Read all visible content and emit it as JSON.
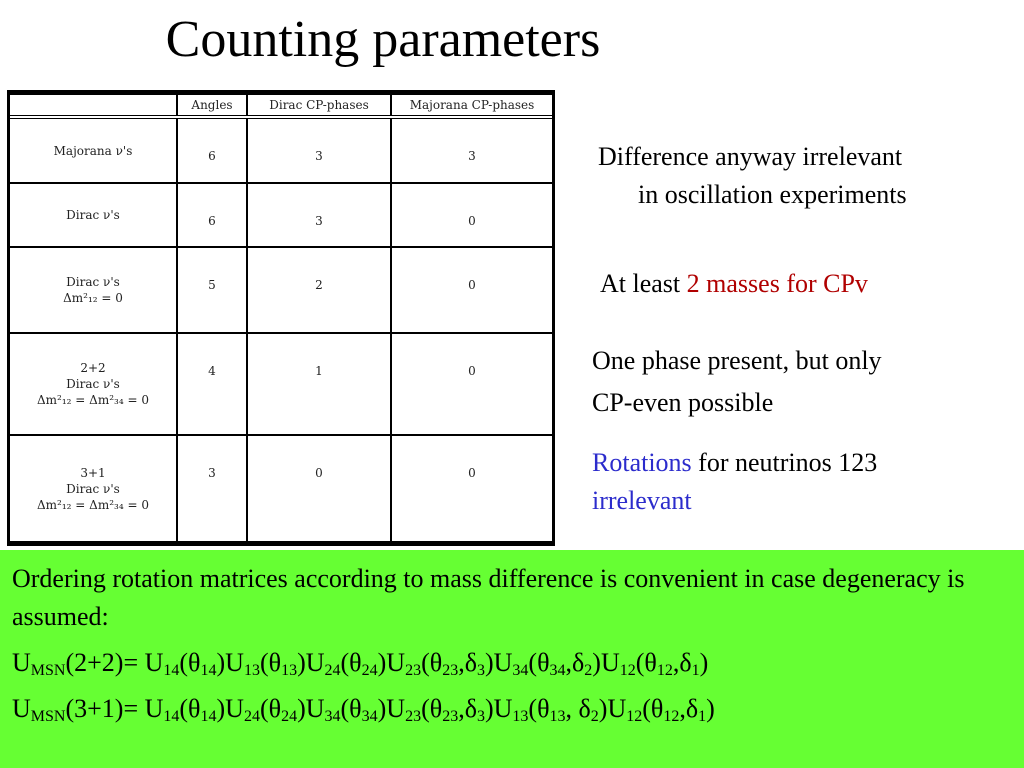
{
  "title": "Counting parameters",
  "table": {
    "headers": [
      "",
      "Angles",
      "Dirac CP-phases",
      "Majorana CP-phases"
    ],
    "rows": [
      {
        "lines": [
          "Majorana ν's"
        ],
        "angles": "6",
        "dirac": "3",
        "majorana": "3"
      },
      {
        "lines": [
          "Dirac ν's"
        ],
        "angles": "6",
        "dirac": "3",
        "majorana": "0"
      },
      {
        "lines": [
          "Dirac ν's",
          "Δm²₁₂ = 0"
        ],
        "angles": "5",
        "dirac": "2",
        "majorana": "0"
      },
      {
        "lines": [
          "2+2",
          "Dirac ν's",
          "Δm²₁₂ = Δm²₃₄ = 0"
        ],
        "angles": "4",
        "dirac": "1",
        "majorana": "0"
      },
      {
        "lines": [
          "3+1",
          "Dirac ν's",
          "Δm²₁₂ = Δm²₃₄ = 0"
        ],
        "angles": "3",
        "dirac": "0",
        "majorana": "0"
      }
    ]
  },
  "notes": {
    "difference_line1": "Difference anyway irrelevant",
    "difference_line2": "in oscillation experiments",
    "atleast_prefix": "At least ",
    "atleast_red": "2 masses for CPv",
    "phase_line1": "One phase present, but only",
    "phase_line2": "CP-even possible",
    "rotations_blue": "Rotations",
    "rotations_rest": " for neutrinos 123",
    "irrelevant_blue": "irrelevant"
  },
  "bottom": {
    "intro": "Ordering rotation matrices according to mass difference is convenient in case degeneracy is assumed:",
    "eq1": "U_MSN(2+2)= U_14(θ_14)U_13(θ_13)U_24(θ_24)U_23(θ_23,δ_3)U_34(θ_34,δ_2)U_12(θ_12,δ_1)",
    "eq2": "U_MSN(3+1)= U_14(θ_14)U_24(θ_24)U_34(θ_34)U_23(θ_23,δ_3)U_13(θ_13, δ_2)U_12(θ_12,δ_1)"
  },
  "colors": {
    "green_box": "#66ff33",
    "red_text": "#b00000",
    "blue_text": "#2c2ccc"
  }
}
